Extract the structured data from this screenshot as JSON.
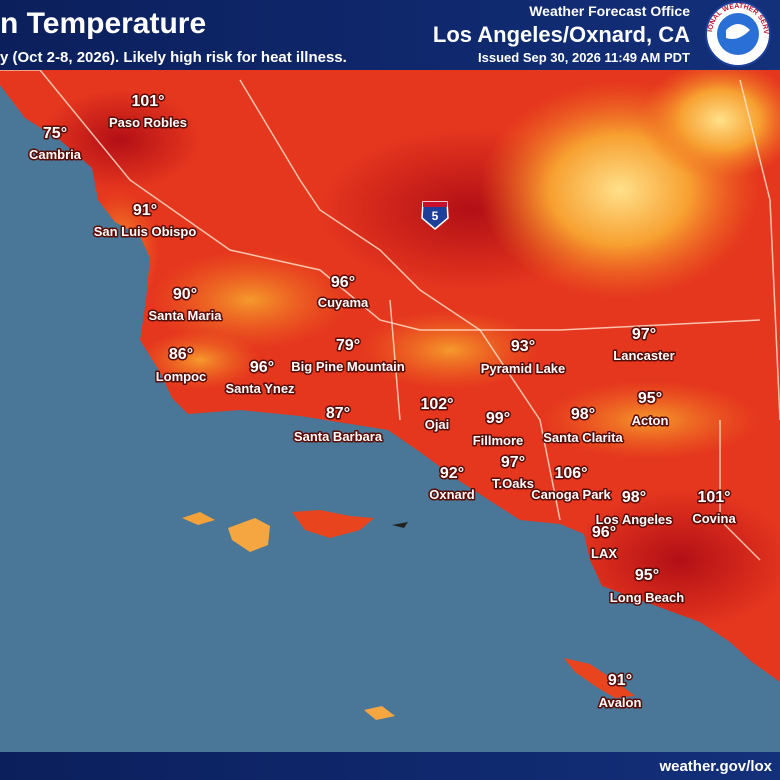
{
  "header": {
    "title": "n Temperature",
    "subtitle": "y (Oct 2-8, 2026). Likely high risk for heat illness.",
    "office": "Weather Forecast Office",
    "location": "Los Angeles/Oxnard, CA",
    "issued": "Issued Sep 30, 2026 11:49 AM PDT",
    "logo_text": "NATIONAL WEATHER SERVICE"
  },
  "highway": "5",
  "cities": [
    {
      "temp": "101°",
      "name": "Paso Robles"
    },
    {
      "temp": "75°",
      "name": "Cambria"
    },
    {
      "temp": "91°",
      "name": "San Luis Obispo"
    },
    {
      "temp": "96°",
      "name": "Cuyama"
    },
    {
      "temp": "90°",
      "name": "Santa Maria"
    },
    {
      "temp": "86°",
      "name": "Lompoc"
    },
    {
      "temp": "96°",
      "name": "Santa Ynez"
    },
    {
      "temp": "79°",
      "name": "Big Pine Mountain"
    },
    {
      "temp": "87°",
      "name": "Santa Barbara"
    },
    {
      "temp": "93°",
      "name": "Pyramid Lake"
    },
    {
      "temp": "97°",
      "name": "Lancaster"
    },
    {
      "temp": "102°",
      "name": "Ojai"
    },
    {
      "temp": "99°",
      "name": "Fillmore"
    },
    {
      "temp": "98°",
      "name": "Santa Clarita"
    },
    {
      "temp": "95°",
      "name": "Acton"
    },
    {
      "temp": "97°",
      "name": "T.Oaks"
    },
    {
      "temp": "92°",
      "name": "Oxnard"
    },
    {
      "temp": "106°",
      "name": "Canoga Park"
    },
    {
      "temp": "98°",
      "name": "Los Angeles"
    },
    {
      "temp": "101°",
      "name": "Covina"
    },
    {
      "temp": "96°",
      "name": "LAX"
    },
    {
      "temp": "95°",
      "name": "Long Beach"
    },
    {
      "temp": "91°",
      "name": "Avalon"
    }
  ],
  "footer": "weather.gov/lox"
}
